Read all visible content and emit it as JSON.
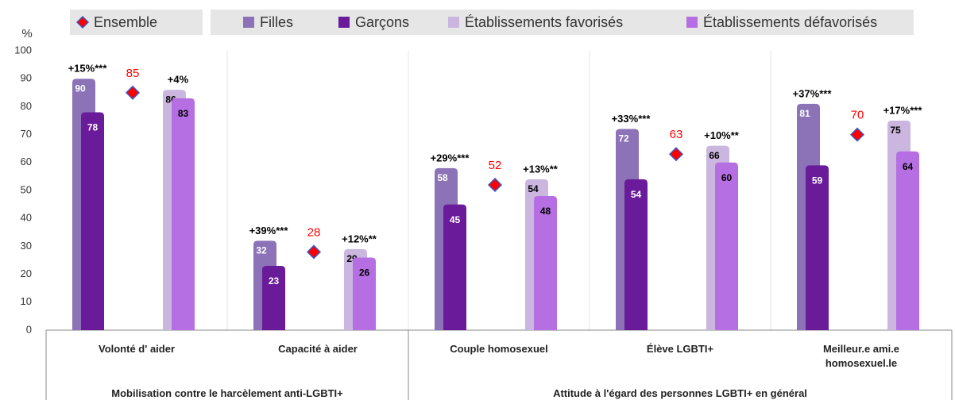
{
  "chart_data": {
    "type": "bar",
    "y_label": "%",
    "ylim": [
      0,
      100
    ],
    "yticks": [
      0,
      10,
      20,
      30,
      40,
      50,
      60,
      70,
      80,
      90,
      100
    ],
    "grid": false,
    "categories": [
      "Volonté d' aider",
      "Capacité à aider",
      "Couple homosexuel",
      "Élève LGBTI+",
      "Meilleur.e ami.e homosexuel.le"
    ],
    "groups": [
      {
        "label": "Mobilisation contre le harcèlement anti-LGBTI+",
        "size": 2
      },
      {
        "label": "Attitude à l'égard des personnes LGBTI+ en général",
        "size": 3
      }
    ],
    "series": [
      {
        "name": "Ensemble",
        "color": "#ff0000",
        "edge": "#3a5bc7",
        "marker": "diamond",
        "label_color": "#ff0000",
        "values": [
          85,
          28,
          52,
          63,
          70
        ]
      },
      {
        "name": "Filles",
        "color": "#8c72b6",
        "label_color": "#ffffff",
        "values": [
          90,
          32,
          58,
          72,
          81
        ]
      },
      {
        "name": "Garçons",
        "color": "#6a1b9a",
        "label_color": "#ffffff",
        "values": [
          78,
          23,
          45,
          54,
          59
        ]
      },
      {
        "name": "Établissements favorisés",
        "color": "#cbb6df",
        "label_color": "#000000",
        "values": [
          86,
          29,
          54,
          66,
          75
        ]
      },
      {
        "name": "Établissements défavorisés",
        "color": "#b56fe2",
        "label_color": "#000000",
        "values": [
          83,
          26,
          48,
          60,
          64
        ]
      }
    ],
    "annotations": {
      "gender": [
        "+15%***",
        "+39%***",
        "+29%***",
        "+33%***",
        "+37%***"
      ],
      "schools": [
        "+4%",
        "+12%**",
        "+13%**",
        "+10%**",
        "+17%***"
      ]
    }
  }
}
